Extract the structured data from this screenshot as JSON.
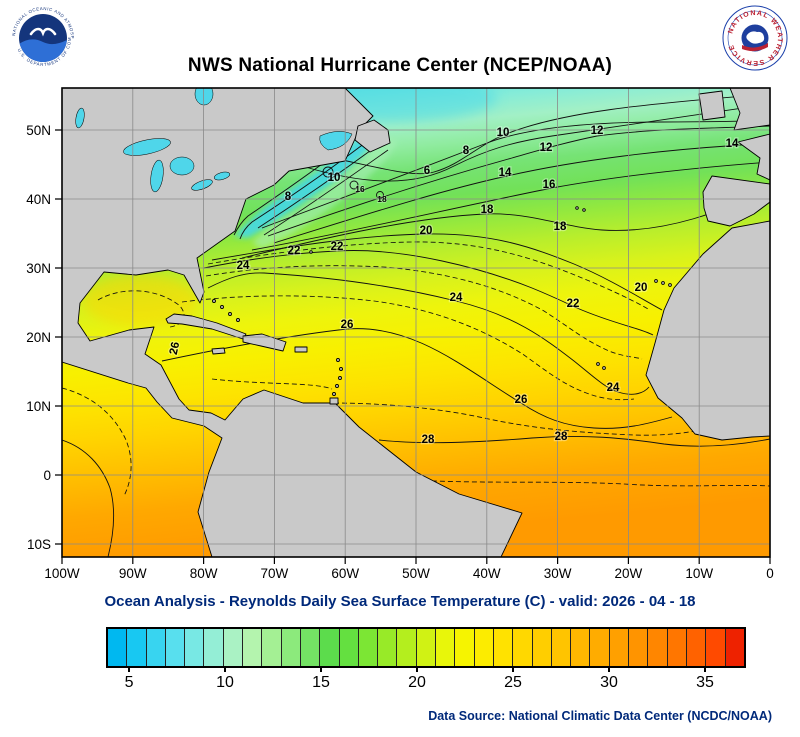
{
  "header": {
    "title": "NWS National Hurricane Center (NCEP/NOAA)",
    "noaa_ring_top": "NATIONAL OCEANIC AND ATMOSPHERIC ADMINISTRATION",
    "noaa_ring_bottom": "U.S. DEPARTMENT OF COMMERCE",
    "nws_ring": "NATIONAL WEATHER SERVICE"
  },
  "map": {
    "lat_ticks": [
      "50N",
      "40N",
      "30N",
      "20N",
      "10N",
      "0",
      "10S"
    ],
    "lon_ticks": [
      "100W",
      "90W",
      "80W",
      "70W",
      "60W",
      "50W",
      "40W",
      "30W",
      "20W",
      "10W",
      "0"
    ],
    "contour_labels": [
      {
        "v": "10"
      },
      {
        "v": "12"
      },
      {
        "v": "12"
      },
      {
        "v": "8"
      },
      {
        "v": "14"
      },
      {
        "v": "14"
      },
      {
        "v": "16"
      },
      {
        "v": "6"
      },
      {
        "v": "10"
      },
      {
        "v": "8"
      },
      {
        "v": "18"
      },
      {
        "v": "18"
      },
      {
        "v": "20"
      },
      {
        "v": "20"
      },
      {
        "v": "22"
      },
      {
        "v": "22"
      },
      {
        "v": "22"
      },
      {
        "v": "24"
      },
      {
        "v": "24"
      },
      {
        "v": "24"
      },
      {
        "v": "26"
      },
      {
        "v": "26"
      },
      {
        "v": "26"
      },
      {
        "v": "28"
      },
      {
        "v": "28"
      },
      {
        "v": "16"
      },
      {
        "v": "18"
      }
    ]
  },
  "caption": "Ocean Analysis - Reynolds Daily Sea Surface Temperature (C) - valid: 2026 - 04 - 18",
  "colorbar": {
    "labels": [
      "5",
      "10",
      "15",
      "20",
      "25",
      "30",
      "35"
    ],
    "colors": [
      "#00b8f0",
      "#18c8f2",
      "#38d4f0",
      "#58dfee",
      "#78e8e4",
      "#94eed6",
      "#aaf2c4",
      "#b4f4ae",
      "#a4f094",
      "#8cea7c",
      "#74e364",
      "#5cdc4c",
      "#64e040",
      "#7ce634",
      "#98ea28",
      "#b4ee1e",
      "#d0f214",
      "#e8f60a",
      "#f6f400",
      "#fcec00",
      "#ffe200",
      "#ffd800",
      "#ffce00",
      "#ffc400",
      "#ffb800",
      "#ffac00",
      "#ffa000",
      "#ff9400",
      "#ff8600",
      "#ff7600",
      "#ff6200",
      "#ff4a00",
      "#ee2200"
    ]
  },
  "footer": {
    "data_source": "Data Source: National Climatic Data Center (NCDC/NOAA)"
  },
  "chart_data": {
    "type": "heatmap",
    "subtype": "filled-contour-map",
    "title": "NWS National Hurricane Center (NCEP/NOAA)",
    "subtitle": "Ocean Analysis - Reynolds Daily Sea Surface Temperature (C) - valid: 2026 - 04 - 18",
    "units": "degrees C",
    "x_axis_ticks": [
      "100W",
      "90W",
      "80W",
      "70W",
      "60W",
      "50W",
      "40W",
      "30W",
      "20W",
      "10W",
      "0"
    ],
    "y_axis_ticks": [
      "50N",
      "40N",
      "30N",
      "20N",
      "10N",
      "0",
      "10S"
    ],
    "colorbar_labeled_values": [
      5,
      10,
      15,
      20,
      25,
      30,
      35
    ],
    "colorbar_range": [
      4,
      37
    ],
    "labeled_isotherms_C": [
      6,
      8,
      10,
      12,
      14,
      16,
      18,
      20,
      22,
      24,
      26,
      28
    ],
    "grid": true,
    "pattern": "SST ~28C along equatorial band, 24-26C in tropics/Caribbean, 18-22C in subtropics, 6-12C in NW Atlantic with tight Gulf Stream front along US east coast"
  }
}
